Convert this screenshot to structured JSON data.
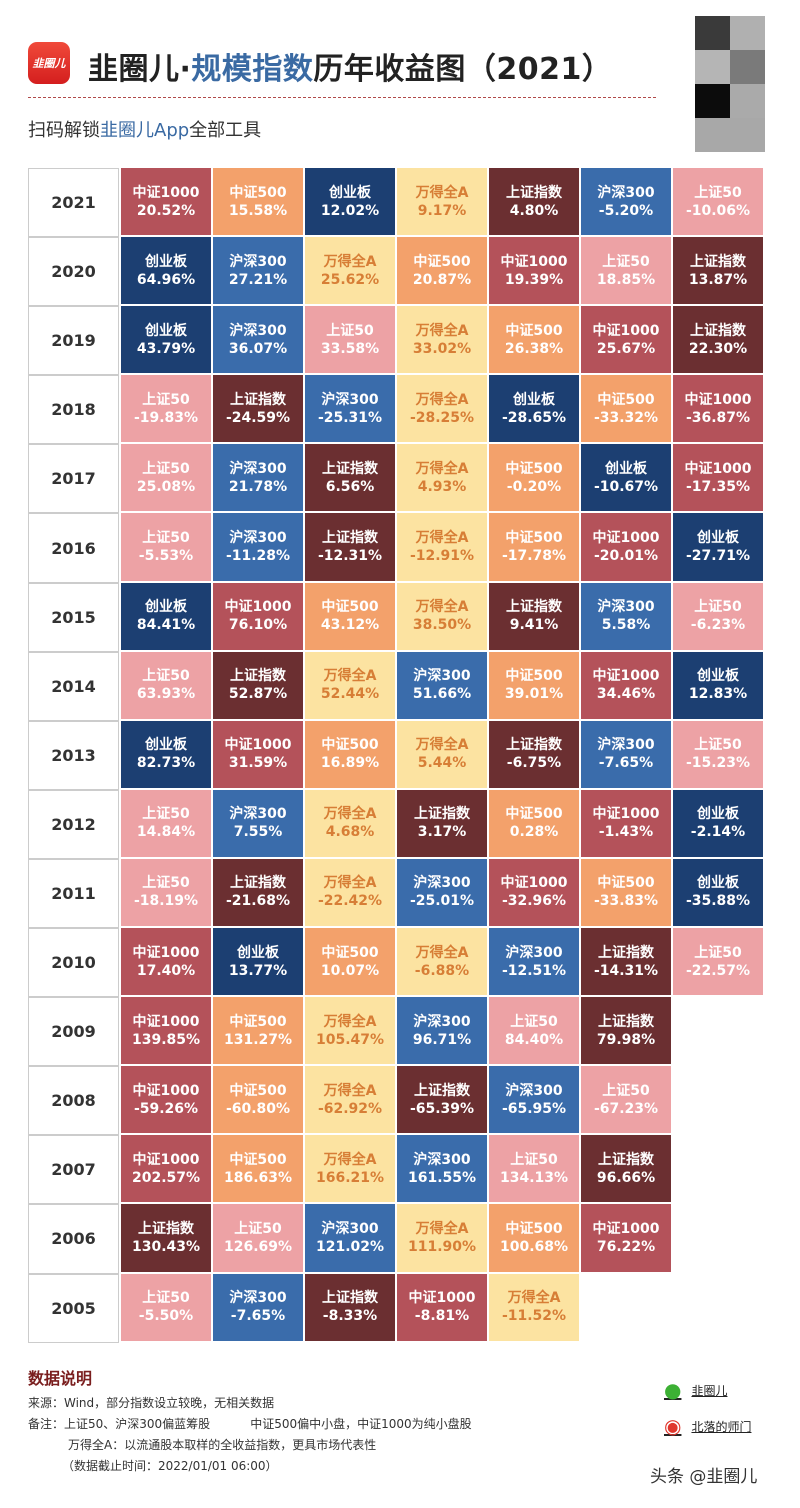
{
  "header": {
    "logo_text": "韭圈儿",
    "title_part1": "韭圈儿·",
    "title_highlight": "规模指数",
    "title_part2": "历年收益图（2021）",
    "subtitle_part1": "扫码解锁",
    "subtitle_highlight": "韭圈儿App",
    "subtitle_part2": "全部工具"
  },
  "chart_data": {
    "type": "table",
    "colors": {
      "中证1000": "#b4525a",
      "中证500": "#f3a16b",
      "创业板": "#1c3f72",
      "万得全A": "#fce3a1",
      "上证指数": "#6b2f31",
      "沪深300": "#3a6cab",
      "上证50": "#eda2a5"
    },
    "text_colors": {
      "万得全A": "#d77e36"
    },
    "rows": [
      {
        "year": "2021",
        "cells": [
          [
            "中证1000",
            "20.52%"
          ],
          [
            "中证500",
            "15.58%"
          ],
          [
            "创业板",
            "12.02%"
          ],
          [
            "万得全A",
            "9.17%"
          ],
          [
            "上证指数",
            "4.80%"
          ],
          [
            "沪深300",
            "-5.20%"
          ],
          [
            "上证50",
            "-10.06%"
          ]
        ]
      },
      {
        "year": "2020",
        "cells": [
          [
            "创业板",
            "64.96%"
          ],
          [
            "沪深300",
            "27.21%"
          ],
          [
            "万得全A",
            "25.62%"
          ],
          [
            "中证500",
            "20.87%"
          ],
          [
            "中证1000",
            "19.39%"
          ],
          [
            "上证50",
            "18.85%"
          ],
          [
            "上证指数",
            "13.87%"
          ]
        ]
      },
      {
        "year": "2019",
        "cells": [
          [
            "创业板",
            "43.79%"
          ],
          [
            "沪深300",
            "36.07%"
          ],
          [
            "上证50",
            "33.58%"
          ],
          [
            "万得全A",
            "33.02%"
          ],
          [
            "中证500",
            "26.38%"
          ],
          [
            "中证1000",
            "25.67%"
          ],
          [
            "上证指数",
            "22.30%"
          ]
        ]
      },
      {
        "year": "2018",
        "cells": [
          [
            "上证50",
            "-19.83%"
          ],
          [
            "上证指数",
            "-24.59%"
          ],
          [
            "沪深300",
            "-25.31%"
          ],
          [
            "万得全A",
            "-28.25%"
          ],
          [
            "创业板",
            "-28.65%"
          ],
          [
            "中证500",
            "-33.32%"
          ],
          [
            "中证1000",
            "-36.87%"
          ]
        ]
      },
      {
        "year": "2017",
        "cells": [
          [
            "上证50",
            "25.08%"
          ],
          [
            "沪深300",
            "21.78%"
          ],
          [
            "上证指数",
            "6.56%"
          ],
          [
            "万得全A",
            "4.93%"
          ],
          [
            "中证500",
            "-0.20%"
          ],
          [
            "创业板",
            "-10.67%"
          ],
          [
            "中证1000",
            "-17.35%"
          ]
        ]
      },
      {
        "year": "2016",
        "cells": [
          [
            "上证50",
            "-5.53%"
          ],
          [
            "沪深300",
            "-11.28%"
          ],
          [
            "上证指数",
            "-12.31%"
          ],
          [
            "万得全A",
            "-12.91%"
          ],
          [
            "中证500",
            "-17.78%"
          ],
          [
            "中证1000",
            "-20.01%"
          ],
          [
            "创业板",
            "-27.71%"
          ]
        ]
      },
      {
        "year": "2015",
        "cells": [
          [
            "创业板",
            "84.41%"
          ],
          [
            "中证1000",
            "76.10%"
          ],
          [
            "中证500",
            "43.12%"
          ],
          [
            "万得全A",
            "38.50%"
          ],
          [
            "上证指数",
            "9.41%"
          ],
          [
            "沪深300",
            "5.58%"
          ],
          [
            "上证50",
            "-6.23%"
          ]
        ]
      },
      {
        "year": "2014",
        "cells": [
          [
            "上证50",
            "63.93%"
          ],
          [
            "上证指数",
            "52.87%"
          ],
          [
            "万得全A",
            "52.44%"
          ],
          [
            "沪深300",
            "51.66%"
          ],
          [
            "中证500",
            "39.01%"
          ],
          [
            "中证1000",
            "34.46%"
          ],
          [
            "创业板",
            "12.83%"
          ]
        ]
      },
      {
        "year": "2013",
        "cells": [
          [
            "创业板",
            "82.73%"
          ],
          [
            "中证1000",
            "31.59%"
          ],
          [
            "中证500",
            "16.89%"
          ],
          [
            "万得全A",
            "5.44%"
          ],
          [
            "上证指数",
            "-6.75%"
          ],
          [
            "沪深300",
            "-7.65%"
          ],
          [
            "上证50",
            "-15.23%"
          ]
        ]
      },
      {
        "year": "2012",
        "cells": [
          [
            "上证50",
            "14.84%"
          ],
          [
            "沪深300",
            "7.55%"
          ],
          [
            "万得全A",
            "4.68%"
          ],
          [
            "上证指数",
            "3.17%"
          ],
          [
            "中证500",
            "0.28%"
          ],
          [
            "中证1000",
            "-1.43%"
          ],
          [
            "创业板",
            "-2.14%"
          ]
        ]
      },
      {
        "year": "2011",
        "cells": [
          [
            "上证50",
            "-18.19%"
          ],
          [
            "上证指数",
            "-21.68%"
          ],
          [
            "万得全A",
            "-22.42%"
          ],
          [
            "沪深300",
            "-25.01%"
          ],
          [
            "中证1000",
            "-32.96%"
          ],
          [
            "中证500",
            "-33.83%"
          ],
          [
            "创业板",
            "-35.88%"
          ]
        ]
      },
      {
        "year": "2010",
        "cells": [
          [
            "中证1000",
            "17.40%"
          ],
          [
            "创业板",
            "13.77%"
          ],
          [
            "中证500",
            "10.07%"
          ],
          [
            "万得全A",
            "-6.88%"
          ],
          [
            "沪深300",
            "-12.51%"
          ],
          [
            "上证指数",
            "-14.31%"
          ],
          [
            "上证50",
            "-22.57%"
          ]
        ]
      },
      {
        "year": "2009",
        "cells": [
          [
            "中证1000",
            "139.85%"
          ],
          [
            "中证500",
            "131.27%"
          ],
          [
            "万得全A",
            "105.47%"
          ],
          [
            "沪深300",
            "96.71%"
          ],
          [
            "上证50",
            "84.40%"
          ],
          [
            "上证指数",
            "79.98%"
          ]
        ]
      },
      {
        "year": "2008",
        "cells": [
          [
            "中证1000",
            "-59.26%"
          ],
          [
            "中证500",
            "-60.80%"
          ],
          [
            "万得全A",
            "-62.92%"
          ],
          [
            "上证指数",
            "-65.39%"
          ],
          [
            "沪深300",
            "-65.95%"
          ],
          [
            "上证50",
            "-67.23%"
          ]
        ]
      },
      {
        "year": "2007",
        "cells": [
          [
            "中证1000",
            "202.57%"
          ],
          [
            "中证500",
            "186.63%"
          ],
          [
            "万得全A",
            "166.21%"
          ],
          [
            "沪深300",
            "161.55%"
          ],
          [
            "上证50",
            "134.13%"
          ],
          [
            "上证指数",
            "96.66%"
          ]
        ]
      },
      {
        "year": "2006",
        "cells": [
          [
            "上证指数",
            "130.43%"
          ],
          [
            "上证50",
            "126.69%"
          ],
          [
            "沪深300",
            "121.02%"
          ],
          [
            "万得全A",
            "111.90%"
          ],
          [
            "中证500",
            "100.68%"
          ],
          [
            "中证1000",
            "76.22%"
          ]
        ]
      },
      {
        "year": "2005",
        "cells": [
          [
            "上证50",
            "-5.50%"
          ],
          [
            "沪深300",
            "-7.65%"
          ],
          [
            "上证指数",
            "-8.33%"
          ],
          [
            "中证1000",
            "-8.81%"
          ],
          [
            "万得全A",
            "-11.52%"
          ]
        ]
      }
    ]
  },
  "notes": {
    "heading": "数据说明",
    "source": "来源：Wind，部分指数设立较晚，无相关数据",
    "remark_a": "备注：上证50、沪深300偏蓝筹股",
    "remark_b": "中证500偏中小盘，中证1000为纯小盘股",
    "remark_c": "万得全A：以流通股本取样的全收益指数，更具市场代表性",
    "cutoff": "（数据截止时间：2022/01/01 06:00）"
  },
  "social": {
    "wechat": "韭圈儿",
    "weibo": "北落的师门"
  },
  "watermark": "头条 @韭圈儿"
}
